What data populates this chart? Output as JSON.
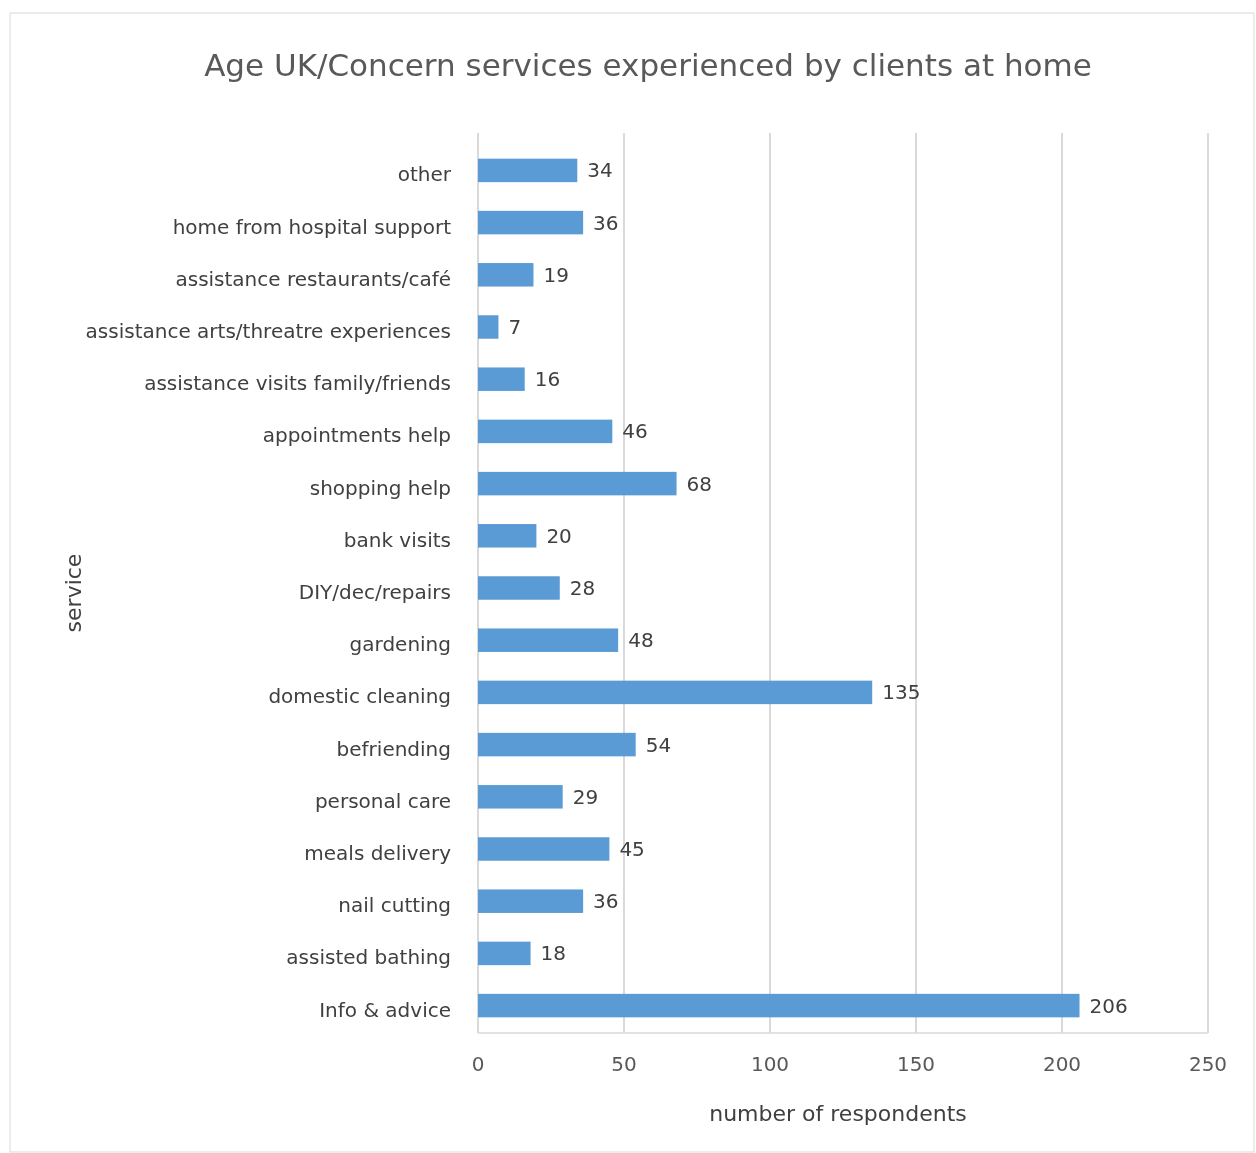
{
  "chart_data": {
    "type": "bar",
    "orientation": "horizontal",
    "title": "Age UK/Concern services experienced by clients at home",
    "xlabel": "number of respondents",
    "ylabel": "service",
    "categories": [
      "other",
      "home from hospital support",
      "assistance restaurants/café",
      "assistance arts/threatre experiences",
      "assistance visits family/friends",
      "appointments help",
      "shopping help",
      "bank visits",
      "DIY/dec/repairs",
      "gardening",
      "domestic cleaning",
      "befriending",
      "personal care",
      "meals delivery",
      "nail cutting",
      "assisted bathing",
      "Info & advice"
    ],
    "values": [
      34,
      36,
      19,
      7,
      16,
      46,
      68,
      20,
      28,
      48,
      135,
      54,
      29,
      45,
      36,
      18,
      206
    ],
    "color": "#5b9bd5",
    "xlim": [
      0,
      250
    ],
    "xticks": [
      0,
      50,
      100,
      150,
      200,
      250
    ],
    "grid": "x",
    "data_labels": true
  }
}
